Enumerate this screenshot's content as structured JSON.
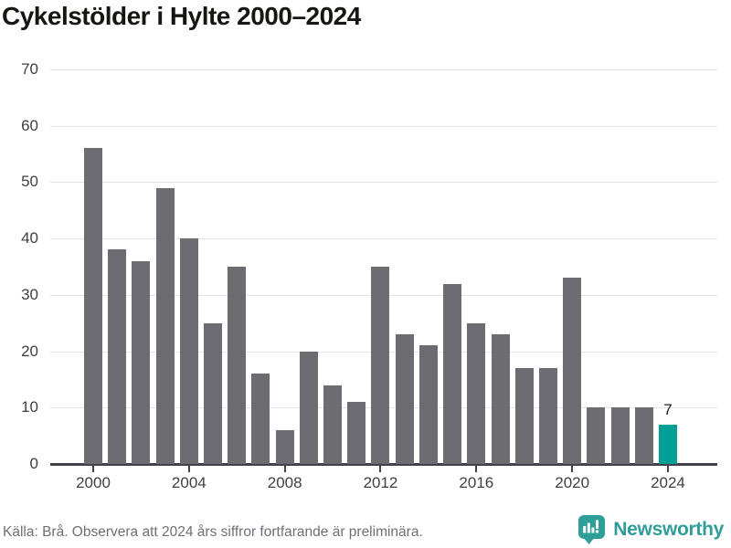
{
  "title": "Cykelstölder i Hylte 2000–2024",
  "chart_data": {
    "type": "bar",
    "categories": [
      "2000",
      "2001",
      "2002",
      "2003",
      "2004",
      "2005",
      "2006",
      "2007",
      "2008",
      "2009",
      "2010",
      "2011",
      "2012",
      "2013",
      "2014",
      "2015",
      "2016",
      "2017",
      "2018",
      "2019",
      "2020",
      "2021",
      "2022",
      "2023",
      "2024"
    ],
    "values": [
      56,
      38,
      36,
      49,
      40,
      25,
      35,
      16,
      6,
      20,
      14,
      11,
      35,
      23,
      21,
      32,
      25,
      23,
      17,
      17,
      33,
      10,
      10,
      10,
      7
    ],
    "title": "Cykelstölder i Hylte 2000–2024",
    "xlabel": "",
    "ylabel": "",
    "ylim": [
      0,
      70
    ],
    "yticks": [
      0,
      10,
      20,
      30,
      40,
      50,
      60,
      70
    ],
    "xticks": [
      "2000",
      "2004",
      "2008",
      "2012",
      "2016",
      "2020",
      "2024"
    ],
    "grid": true,
    "legend": "none",
    "bar_color": "#6c6c72",
    "highlight_index": 24,
    "highlight_color": "#00a096",
    "highlight_label": "7"
  },
  "footer": {
    "source_text": "Källa: Brå. Observera att 2024 års siffror fortfarande är preliminära."
  },
  "logo": {
    "text": "Newsworthy",
    "icon": "newsworthy-bubble-chart-icon",
    "color": "#2f9e99"
  }
}
